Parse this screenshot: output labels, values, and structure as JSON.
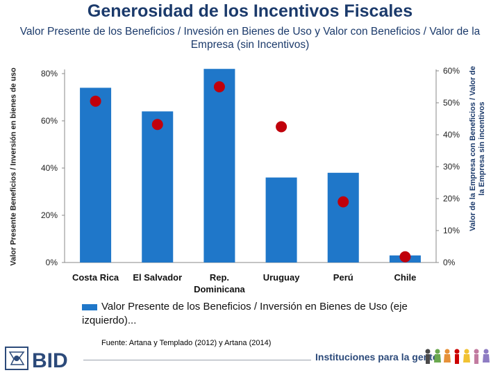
{
  "header": {
    "title": "Generosidad de los Incentivos Fiscales",
    "subtitle": "Valor Presente de los Beneficios / Invesión en Bienes de Uso y Valor con Beneficios / Valor de la Empresa (sin Incentivos)"
  },
  "chart_data": {
    "type": "bar",
    "categories": [
      "Costa Rica",
      "El Salvador",
      "Rep. Dominicana",
      "Uruguay",
      "Perú",
      "Chile"
    ],
    "series": [
      {
        "name": "Valor Presente de los Beneficios / Inversión en Bienes de Uso (eje izquierdo)...",
        "type": "bar",
        "axis": "left",
        "values": [
          0.74,
          0.64,
          0.82,
          0.36,
          0.38,
          0.03
        ],
        "color": "#1f77c9"
      },
      {
        "type": "scatter",
        "axis": "right",
        "values": [
          0.505,
          0.432,
          0.55,
          0.425,
          0.19,
          0.018
        ],
        "color": "#c0000b"
      }
    ],
    "ylabel": "Valor Presente Beneficios / Inversión en bienes de uso",
    "y2label": "Valor de la Empresa con Beneficios / Valor de la Empresa sin incentivos",
    "ylim": [
      0,
      0.9
    ],
    "y2lim": [
      0,
      0.6
    ],
    "yticks": [
      0,
      0.2,
      0.4,
      0.6,
      0.8
    ],
    "y2ticks": [
      0,
      0.1,
      0.2,
      0.3,
      0.4,
      0.5,
      0.6
    ],
    "ytick_labels": [
      "0%",
      "20%",
      "40%",
      "60%",
      "80%"
    ],
    "y2tick_labels": [
      "0%",
      "10%",
      "20%",
      "30%",
      "40%",
      "50%",
      "60%"
    ],
    "grid": false,
    "legend_position": "bottom"
  },
  "source": "Fuente: Artana y Templado (2012) y Artana (2014)",
  "footer": {
    "logo_text": "BID",
    "tagline": "Instituciones para la gente"
  },
  "colors": {
    "title": "#1b3a6b",
    "bar": "#1f77c9",
    "marker": "#c0000b"
  }
}
